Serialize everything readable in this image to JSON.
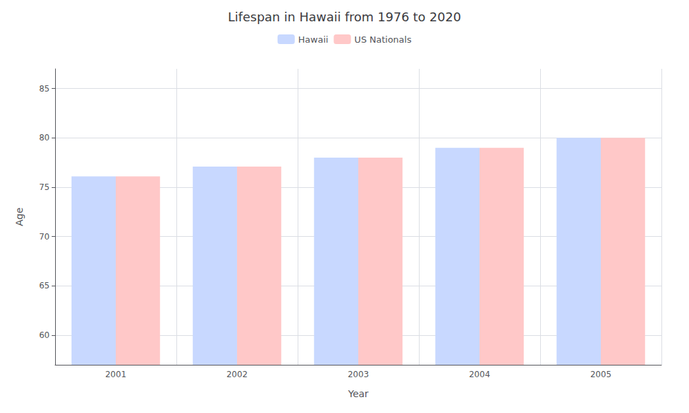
{
  "chart_data": {
    "type": "bar",
    "title": "Lifespan in Hawaii from 1976 to 2020",
    "xlabel": "Year",
    "ylabel": "Age",
    "categories": [
      "2001",
      "2002",
      "2003",
      "2004",
      "2005"
    ],
    "series": [
      {
        "name": "Hawaii",
        "color": "#c8d8ff",
        "values": [
          76.1,
          77.1,
          78.0,
          79.0,
          80.0
        ]
      },
      {
        "name": "US Nationals",
        "color": "#ffc8c8",
        "values": [
          76.1,
          77.1,
          78.0,
          79.0,
          80.0
        ]
      }
    ],
    "ylim": [
      57,
      87
    ],
    "yticks": [
      60,
      65,
      70,
      75,
      80,
      85
    ],
    "grid": true,
    "legend": "top"
  }
}
